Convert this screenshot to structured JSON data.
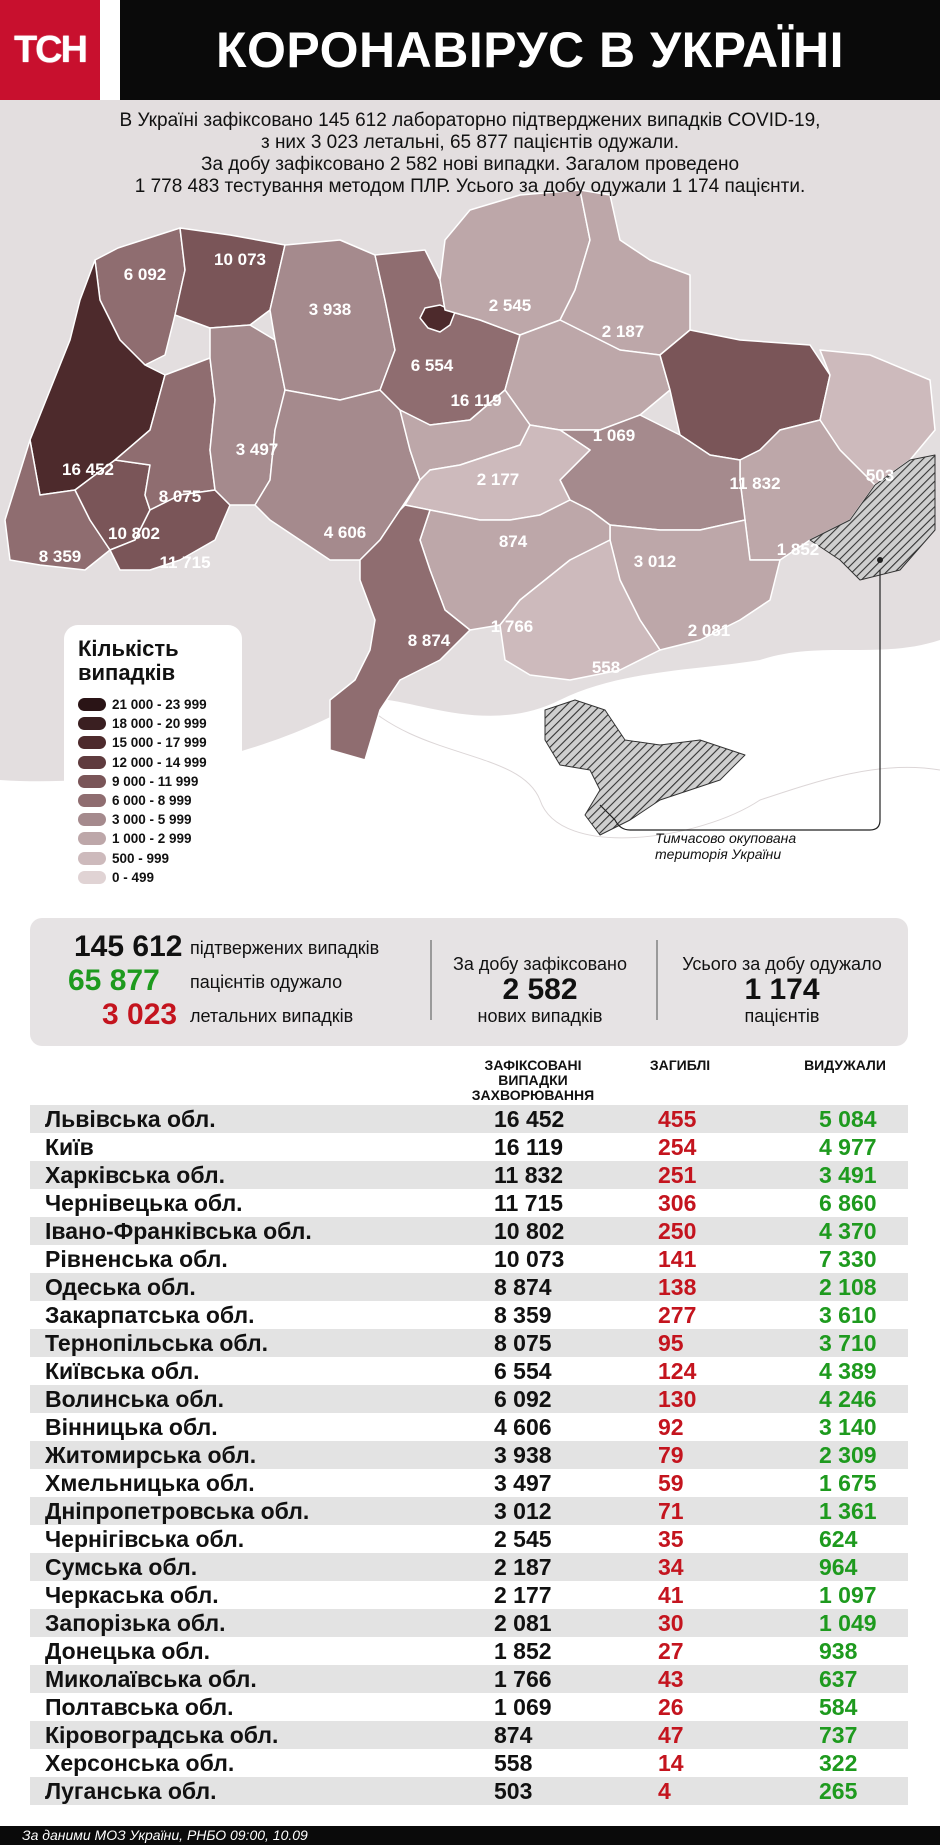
{
  "header": {
    "logo": "ТСН",
    "title": "КОРОНАВІРУС В УКРАЇНІ"
  },
  "intro": {
    "line1": "В Україні зафіксовано 145 612 лабораторно підтверджених випадків COVID-19,",
    "line2": "з них 3 023 летальні, 65 877 пацієнтів одужали.",
    "line3": "За добу зафіксовано 2 582 нові випадки. Загалом проведено",
    "line4": "1 778 483 тестування методом ПЛР. Усього за добу одужали 1 174 пацієнти."
  },
  "map": {
    "regions": [
      {
        "name": "Львівська обл.",
        "value": "16 452",
        "color": "#4d2a2c"
      },
      {
        "name": "Київ",
        "value": "16 119",
        "color": "#4d2a2c"
      },
      {
        "name": "Харківська обл.",
        "value": "11 832",
        "color": "#7a5558"
      },
      {
        "name": "Чернівецька обл.",
        "value": "11 715",
        "color": "#7a5558"
      },
      {
        "name": "Івано-Франківська обл.",
        "value": "10 802",
        "color": "#7a5558"
      },
      {
        "name": "Рівненська обл.",
        "value": "10 073",
        "color": "#7a5558"
      },
      {
        "name": "Одеська обл.",
        "value": "8 874",
        "color": "#8f6d70"
      },
      {
        "name": "Закарпатська обл.",
        "value": "8 359",
        "color": "#8f6d70"
      },
      {
        "name": "Тернопільська обл.",
        "value": "8 075",
        "color": "#8f6d70"
      },
      {
        "name": "Київська обл.",
        "value": "6 554",
        "color": "#8f6d70"
      },
      {
        "name": "Волинська обл.",
        "value": "6 092",
        "color": "#8f6d70"
      },
      {
        "name": "Вінницька обл.",
        "value": "4 606",
        "color": "#a58a8d"
      },
      {
        "name": "Житомирська обл.",
        "value": "3 938",
        "color": "#a58a8d"
      },
      {
        "name": "Хмельницька обл.",
        "value": "3 497",
        "color": "#a58a8d"
      },
      {
        "name": "Дніпропетровська обл.",
        "value": "3 012",
        "color": "#a58a8d"
      },
      {
        "name": "Чернігівська обл.",
        "value": "2 545",
        "color": "#bda7a9"
      },
      {
        "name": "Сумська обл.",
        "value": "2 187",
        "color": "#bda7a9"
      },
      {
        "name": "Черкаська обл.",
        "value": "2 177",
        "color": "#bda7a9"
      },
      {
        "name": "Запорізька обл.",
        "value": "2 081",
        "color": "#bda7a9"
      },
      {
        "name": "Донецька обл.",
        "value": "1 852",
        "color": "#bda7a9"
      },
      {
        "name": "Миколаївська обл.",
        "value": "1 766",
        "color": "#bda7a9"
      },
      {
        "name": "Полтавська обл.",
        "value": "1 069",
        "color": "#bda7a9"
      },
      {
        "name": "Кіровоградська обл.",
        "value": "874",
        "color": "#cdbabc"
      },
      {
        "name": "Херсонська обл.",
        "value": "558",
        "color": "#cdbabc"
      },
      {
        "name": "Луганська обл.",
        "value": "503",
        "color": "#cdbabc"
      }
    ],
    "occupied_note_line1": "Тимчасово окупована",
    "occupied_note_line2": "територія України"
  },
  "legend": {
    "title_line1": "Кількість",
    "title_line2": "випадків",
    "items": [
      {
        "label": "21 000 - 23 999",
        "color": "#2a1416"
      },
      {
        "label": "18 000 - 20 999",
        "color": "#3a1f21"
      },
      {
        "label": "15 000 - 17 999",
        "color": "#4d2a2c"
      },
      {
        "label": "12 000 - 14 999",
        "color": "#5f3b3e"
      },
      {
        "label": "9 000 - 11 999",
        "color": "#7a5558"
      },
      {
        "label": "6 000 - 8 999",
        "color": "#8f6d70"
      },
      {
        "label": "3 000 - 5 999",
        "color": "#a58a8d"
      },
      {
        "label": "1 000 - 2 999",
        "color": "#bda7a9"
      },
      {
        "label": "500 - 999",
        "color": "#cdbabc"
      },
      {
        "label": "0 - 499",
        "color": "#e0d3d4"
      }
    ]
  },
  "summary": {
    "confirmed_value": "145 612",
    "confirmed_label": "підтвержених випадків",
    "recovered_value": "65 877",
    "recovered_label": "пацієнтів одужало",
    "deaths_value": "3 023",
    "deaths_label": "летальних випадків",
    "daily_label": "За добу зафіксовано",
    "daily_value": "2 582",
    "daily_sub": "нових випадків",
    "daily_rec_label": "Усього за добу одужало",
    "daily_rec_value": "1 174",
    "daily_rec_sub": "пацієнтів",
    "color_recovered": "#1e9a1e",
    "color_deaths": "#c4141e"
  },
  "table": {
    "col_cases_line1": "ЗАФІКСОВАНІ",
    "col_cases_line2": "ВИПАДКИ",
    "col_cases_line3": "ЗАХВОРЮВАННЯ",
    "col_deaths": "ЗАГИБЛІ",
    "col_recovered": "ВИДУЖАЛИ",
    "rows": [
      {
        "name": "Львівська обл.",
        "cases": "16 452",
        "deaths": "455",
        "recovered": "5 084"
      },
      {
        "name": "Київ",
        "cases": "16 119",
        "deaths": "254",
        "recovered": "4 977"
      },
      {
        "name": "Харківська обл.",
        "cases": "11 832",
        "deaths": "251",
        "recovered": "3 491"
      },
      {
        "name": "Чернівецька обл.",
        "cases": "11 715",
        "deaths": "306",
        "recovered": "6 860"
      },
      {
        "name": "Івано-Франківська обл.",
        "cases": "10 802",
        "deaths": "250",
        "recovered": "4 370"
      },
      {
        "name": "Рівненська обл.",
        "cases": "10 073",
        "deaths": "141",
        "recovered": "7 330"
      },
      {
        "name": "Одеська обл.",
        "cases": "8 874",
        "deaths": "138",
        "recovered": "2 108"
      },
      {
        "name": "Закарпатська обл.",
        "cases": "8 359",
        "deaths": "277",
        "recovered": "3 610"
      },
      {
        "name": "Тернопільська обл.",
        "cases": "8 075",
        "deaths": "95",
        "recovered": "3 710"
      },
      {
        "name": "Київська обл.",
        "cases": "6 554",
        "deaths": "124",
        "recovered": "4 389"
      },
      {
        "name": "Волинська обл.",
        "cases": "6 092",
        "deaths": "130",
        "recovered": "4 246"
      },
      {
        "name": "Вінницька обл.",
        "cases": "4 606",
        "deaths": "92",
        "recovered": "3 140"
      },
      {
        "name": "Житомирська обл.",
        "cases": "3 938",
        "deaths": "79",
        "recovered": "2 309"
      },
      {
        "name": "Хмельницька обл.",
        "cases": "3 497",
        "deaths": "59",
        "recovered": "1 675"
      },
      {
        "name": "Дніпропетровська обл.",
        "cases": "3 012",
        "deaths": "71",
        "recovered": "1 361"
      },
      {
        "name": "Чернігівська обл.",
        "cases": "2 545",
        "deaths": "35",
        "recovered": "624"
      },
      {
        "name": "Сумська обл.",
        "cases": "2 187",
        "deaths": "34",
        "recovered": "964"
      },
      {
        "name": "Черкаська обл.",
        "cases": "2 177",
        "deaths": "41",
        "recovered": "1 097"
      },
      {
        "name": "Запорізька обл.",
        "cases": "2 081",
        "deaths": "30",
        "recovered": "1 049"
      },
      {
        "name": "Донецька обл.",
        "cases": "1 852",
        "deaths": "27",
        "recovered": "938"
      },
      {
        "name": "Миколаївська обл.",
        "cases": "1 766",
        "deaths": "43",
        "recovered": "637"
      },
      {
        "name": "Полтавська обл.",
        "cases": "1 069",
        "deaths": "26",
        "recovered": "584"
      },
      {
        "name": "Кіровоградська обл.",
        "cases": "874",
        "deaths": "47",
        "recovered": "737"
      },
      {
        "name": "Херсонська обл.",
        "cases": "558",
        "deaths": "14",
        "recovered": "322"
      },
      {
        "name": "Луганська обл.",
        "cases": "503",
        "deaths": "4",
        "recovered": "265"
      }
    ]
  },
  "footer": {
    "source": "За даними МОЗ України, РНБО  09:00, 10.09"
  }
}
